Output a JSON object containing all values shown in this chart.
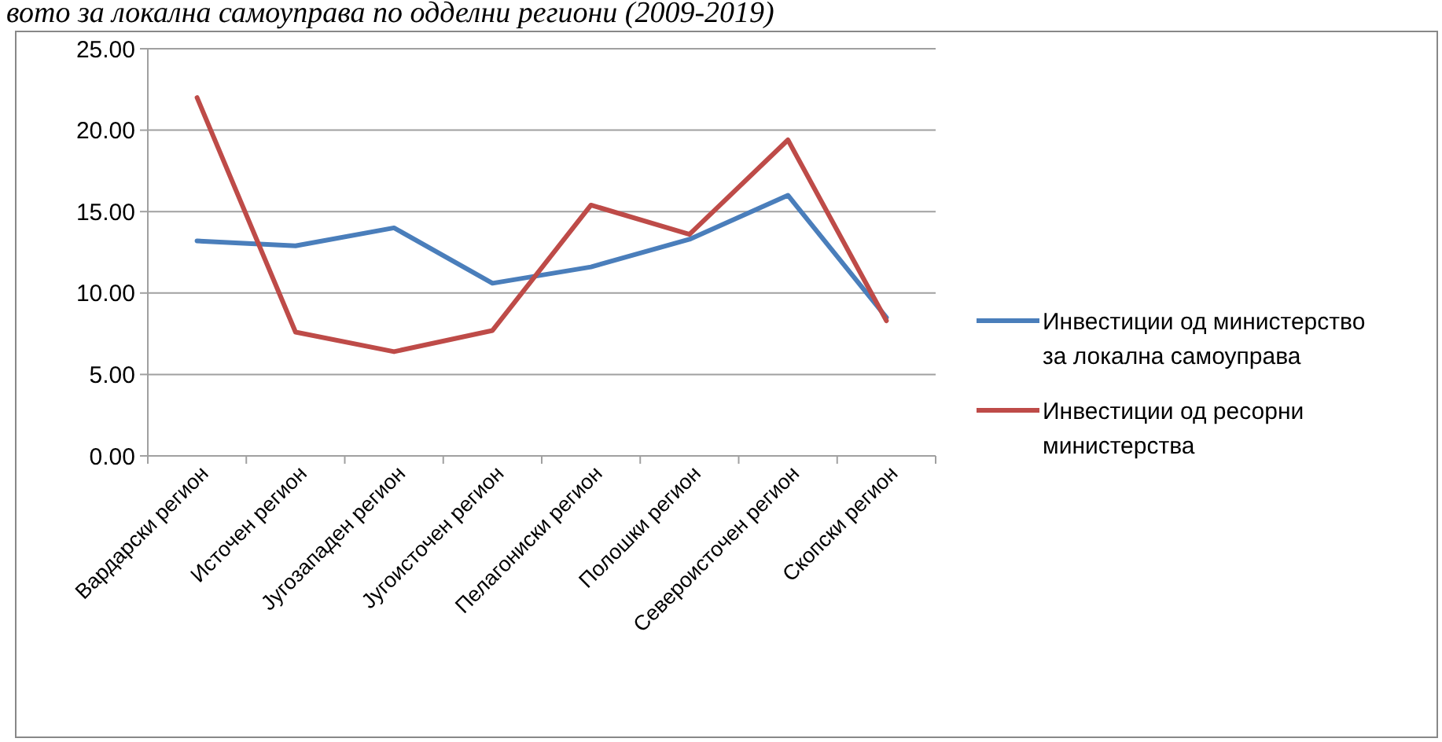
{
  "chart_data": {
    "type": "line",
    "title": "вото за локална самоуправа по одделни региони (2009-2019)",
    "categories": [
      "Вардарски регион",
      "Источен регион",
      "Југозападен регион",
      "Југоисточен регион",
      "Пелагониски регион",
      "Полошки регион",
      "Североисточен регион",
      "Скопски регион"
    ],
    "series": [
      {
        "name": "Инвестиции од министерство за локална самоуправа",
        "color": "#4a7ebb",
        "values": [
          13.2,
          12.9,
          14.0,
          10.6,
          11.6,
          13.3,
          16.0,
          8.5
        ]
      },
      {
        "name": "Инвестиции од ресорни министерства",
        "color": "#be4b48",
        "values": [
          22.0,
          7.6,
          6.4,
          7.7,
          15.4,
          13.6,
          19.4,
          8.3
        ]
      }
    ],
    "ylim": [
      0,
      25
    ],
    "yticks": [
      {
        "value": 0,
        "label": "0.00"
      },
      {
        "value": 5,
        "label": "5.00"
      },
      {
        "value": 10,
        "label": "10.00"
      },
      {
        "value": 15,
        "label": "15.00"
      },
      {
        "value": 20,
        "label": "20.00"
      },
      {
        "value": 25,
        "label": "25.00"
      }
    ],
    "grid": "y",
    "legend": "right",
    "marker": "none"
  }
}
